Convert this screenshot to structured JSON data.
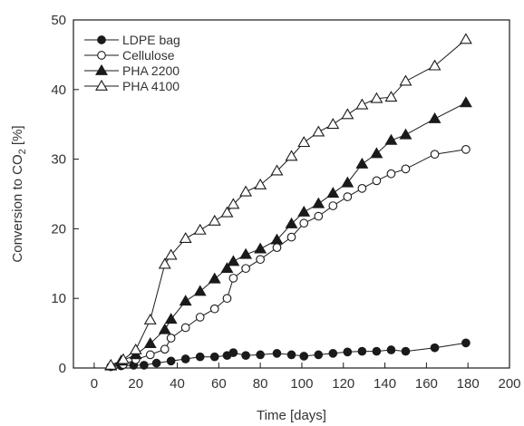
{
  "chart_data": {
    "type": "line",
    "xlabel": "Time [days]",
    "ylabel": "Conversion to CO",
    "ylabel_subscript": "2",
    "ylabel_suffix": " [%]",
    "xlim": [
      -10,
      200
    ],
    "ylim": [
      0,
      50
    ],
    "xticks": [
      0,
      20,
      40,
      60,
      80,
      100,
      120,
      140,
      160,
      180,
      200
    ],
    "yticks": [
      0,
      10,
      20,
      30,
      40,
      50
    ],
    "grid": false,
    "legend_position": "top-left",
    "series": [
      {
        "name": "LDPE bag",
        "marker": "circle-filled",
        "x": [
          8,
          13,
          19,
          24,
          30,
          37,
          44,
          51,
          58,
          64,
          67,
          73,
          80,
          88,
          95,
          101,
          108,
          115,
          122,
          129,
          136,
          143,
          150,
          164,
          179
        ],
        "y": [
          0.2,
          0.3,
          0.4,
          0.4,
          0.7,
          1.0,
          1.3,
          1.6,
          1.6,
          1.8,
          2.2,
          1.8,
          1.9,
          2.1,
          1.9,
          1.7,
          1.9,
          2.1,
          2.3,
          2.4,
          2.4,
          2.6,
          2.4,
          2.9,
          3.6
        ]
      },
      {
        "name": "Cellulose",
        "marker": "circle-open",
        "x": [
          8,
          14,
          20,
          27,
          34,
          37,
          44,
          51,
          58,
          64,
          67,
          73,
          80,
          88,
          95,
          101,
          108,
          115,
          122,
          129,
          136,
          143,
          150,
          164,
          179
        ],
        "y": [
          0.2,
          0.5,
          1.2,
          1.9,
          2.7,
          4.3,
          5.8,
          7.3,
          8.5,
          10.0,
          12.9,
          14.3,
          15.6,
          17.3,
          18.8,
          20.8,
          21.8,
          23.3,
          24.6,
          25.8,
          26.9,
          27.9,
          28.6,
          30.7,
          31.4
        ]
      },
      {
        "name": "PHA 2200",
        "marker": "triangle-filled",
        "x": [
          8,
          13,
          20,
          27,
          34,
          37,
          44,
          51,
          58,
          64,
          67,
          73,
          80,
          88,
          95,
          101,
          108,
          115,
          122,
          129,
          136,
          143,
          150,
          164,
          179
        ],
        "y": [
          0.3,
          1.0,
          1.9,
          3.5,
          5.5,
          7.0,
          9.6,
          11.0,
          12.8,
          14.3,
          15.3,
          16.3,
          17.1,
          18.4,
          20.7,
          22.4,
          23.6,
          25.1,
          26.6,
          29.3,
          30.8,
          32.7,
          33.5,
          35.8,
          38.1
        ]
      },
      {
        "name": "PHA 4100",
        "marker": "triangle-open",
        "x": [
          8,
          14,
          20,
          27,
          34,
          37,
          44,
          51,
          58,
          64,
          67,
          73,
          80,
          88,
          95,
          101,
          108,
          115,
          122,
          129,
          136,
          143,
          150,
          164,
          179
        ],
        "y": [
          0.4,
          1.2,
          2.6,
          6.9,
          14.9,
          16.2,
          18.6,
          19.8,
          21.1,
          22.3,
          23.5,
          25.3,
          26.3,
          28.3,
          30.4,
          32.4,
          33.9,
          35.0,
          36.4,
          37.8,
          38.7,
          38.9,
          41.2,
          43.4,
          47.2
        ]
      }
    ]
  }
}
